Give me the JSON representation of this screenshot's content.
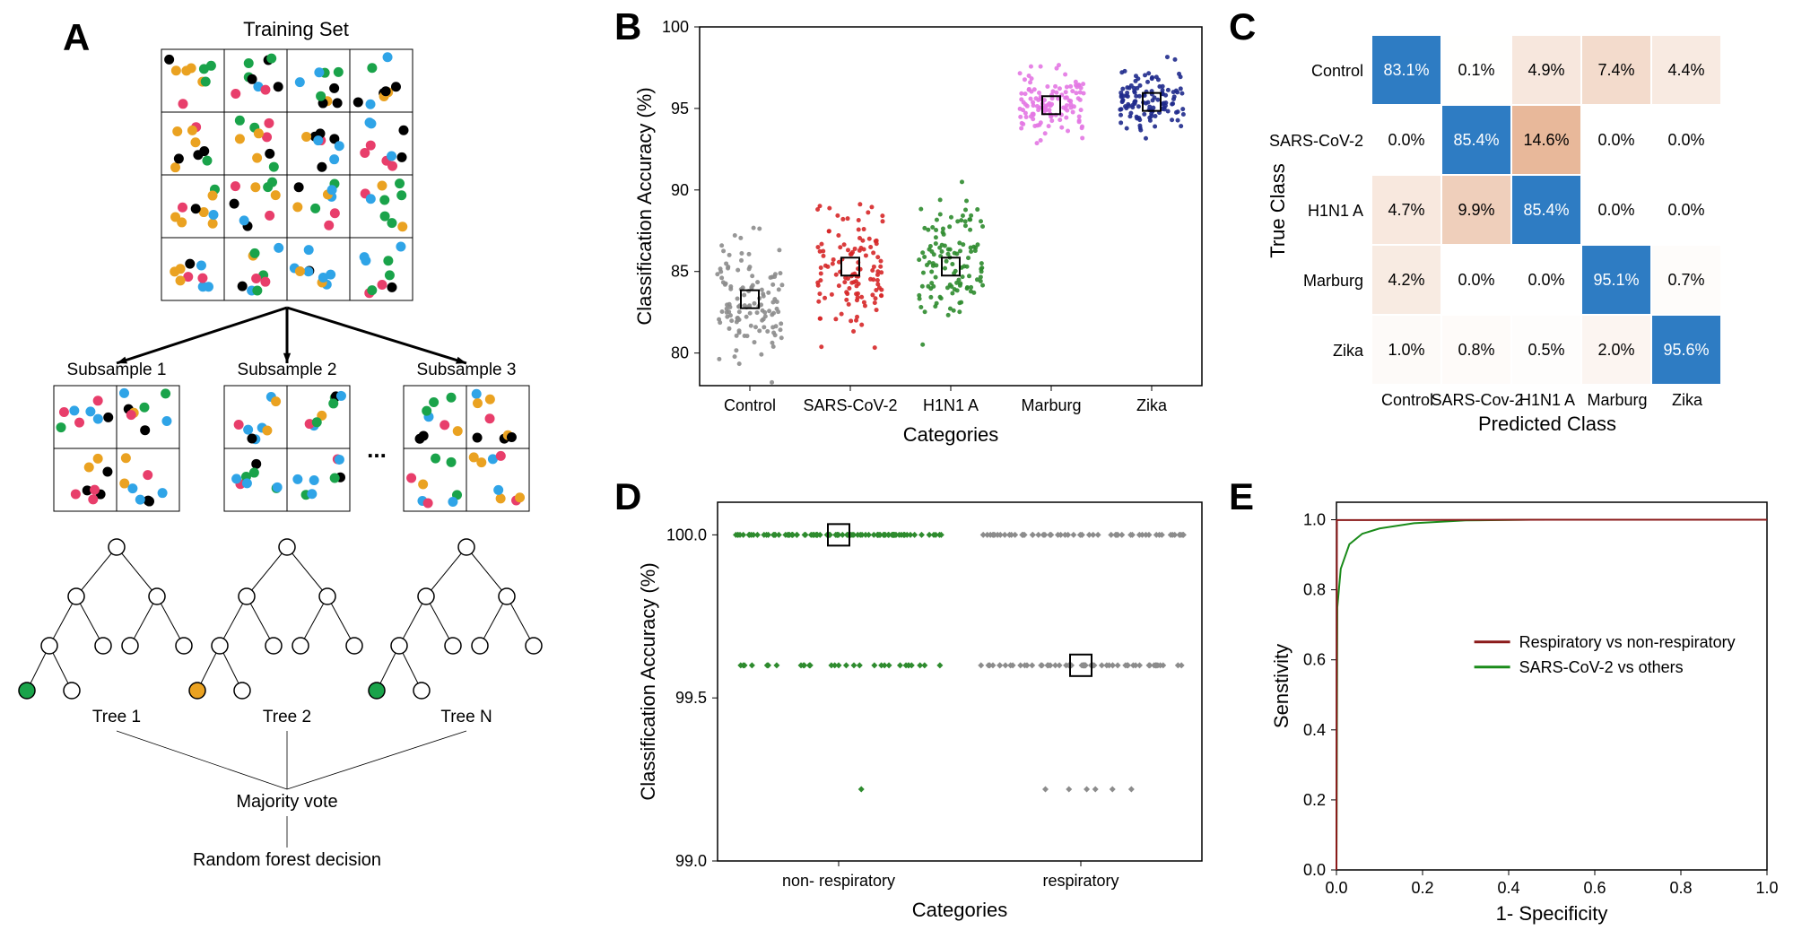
{
  "panelLabels": {
    "A": "A",
    "B": "B",
    "C": "C",
    "D": "D",
    "E": "E"
  },
  "A": {
    "title": "Training Set",
    "subsampleLabels": [
      "Subsample 1",
      "Subsample 2",
      "Subsample 3"
    ],
    "ellipsis": "...",
    "treeLabels": [
      "Tree 1",
      "Tree 2",
      "Tree N"
    ],
    "majority": "Majority vote",
    "decision": "Random forest decision",
    "dotColors": [
      "#1aa34a",
      "#e83e6b",
      "#eaa221",
      "#2fa4e7",
      "#000000"
    ],
    "treeNodeStroke": "#000000",
    "treeNodeFill": "#ffffff",
    "treeLeafFills": [
      "#1aa34a",
      "#eaa221",
      "#1aa34a"
    ]
  },
  "B": {
    "type": "scatter-jitter",
    "xlabel": "Categories",
    "ylabel": "Classification Accuracy (%)",
    "categories": [
      "Control",
      "SARS-CoV-2",
      "H1N1 A",
      "Marburg",
      "Zika"
    ],
    "colors": [
      "#8c8c8c",
      "#d62728",
      "#2e8b2e",
      "#e377e3",
      "#1f2a8c"
    ],
    "means": [
      83.3,
      85.3,
      85.3,
      95.2,
      95.4
    ],
    "spread": [
      3.0,
      3.2,
      3.0,
      1.8,
      1.6
    ],
    "nPerCat": 120,
    "ylim": [
      78,
      100
    ],
    "yticks": [
      80,
      85,
      90,
      95,
      100
    ],
    "meanMarkerStroke": "#000000",
    "meanMarkerFill": "none",
    "frame": "#000000",
    "tickFontSize": 18,
    "labelFontSize": 22
  },
  "C": {
    "type": "confusion-matrix",
    "xlabel": "Predicted Class",
    "ylabel": "True Class",
    "rowLabels": [
      "Control",
      "SARS-CoV-2",
      "H1N1 A",
      "Marburg",
      "Zika"
    ],
    "colLabels": [
      "Control",
      "SARS-Cov-2",
      "H1N1 A",
      "Marburg",
      "Zika"
    ],
    "values": [
      [
        83.1,
        0.1,
        4.9,
        7.4,
        4.4
      ],
      [
        0.0,
        85.4,
        14.6,
        0.0,
        0.0
      ],
      [
        4.7,
        9.9,
        85.4,
        0.0,
        0.0
      ],
      [
        4.2,
        0.0,
        0.0,
        95.1,
        0.7
      ],
      [
        1.0,
        0.8,
        0.5,
        2.0,
        95.6
      ]
    ],
    "diagColor": "#2e7cc3",
    "offDiagBase": "#f7eae2",
    "offDiagMax": "#e8b89a",
    "cellBorder": "#ffffff",
    "textColor": "#000000",
    "diagTextColor": "#ffffff",
    "tickFontSize": 18,
    "labelFontSize": 22
  },
  "D": {
    "type": "scatter-jitter",
    "xlabel": "Categories",
    "ylabel": "Classification Accuracy (%)",
    "categories": [
      "non- respiratory",
      "respiratory"
    ],
    "colors": [
      "#2e8b2e",
      "#8c8c8c"
    ],
    "levels": [
      100.0,
      99.6,
      99.22
    ],
    "levelCounts": [
      [
        90,
        30,
        1
      ],
      [
        55,
        60,
        6
      ]
    ],
    "means": [
      100.0,
      99.6
    ],
    "ylim": [
      99.0,
      100.1
    ],
    "yticks": [
      99.0,
      99.5,
      100.0
    ],
    "meanMarkerStroke": "#000000",
    "frame": "#000000",
    "tickFontSize": 18,
    "labelFontSize": 22,
    "markerShape": "diamond"
  },
  "E": {
    "type": "roc",
    "xlabel": "1- Specificity",
    "ylabel": "Senstivity",
    "xlim": [
      0,
      1
    ],
    "ylim": [
      0,
      1.05
    ],
    "xticks": [
      0.0,
      0.2,
      0.4,
      0.6,
      0.8,
      1.0
    ],
    "yticks": [
      0.0,
      0.2,
      0.4,
      0.6,
      0.8,
      1.0
    ],
    "legend": [
      {
        "label": "Respiratory vs non-respiratory",
        "color": "#8b1a1a"
      },
      {
        "label": "SARS-CoV-2 vs others",
        "color": "#1a8b1a"
      }
    ],
    "curve1": [
      [
        0,
        0
      ],
      [
        0.001,
        0.999
      ],
      [
        0.5,
        1.0
      ],
      [
        1.0,
        1.0
      ]
    ],
    "curve2": [
      [
        0,
        0
      ],
      [
        0.002,
        0.75
      ],
      [
        0.01,
        0.86
      ],
      [
        0.03,
        0.93
      ],
      [
        0.06,
        0.96
      ],
      [
        0.1,
        0.975
      ],
      [
        0.18,
        0.99
      ],
      [
        0.3,
        0.998
      ],
      [
        0.45,
        1.0
      ],
      [
        1.0,
        1.0
      ]
    ],
    "lineWidth": 2,
    "frame": "#000000",
    "tickFontSize": 18,
    "labelFontSize": 22
  }
}
